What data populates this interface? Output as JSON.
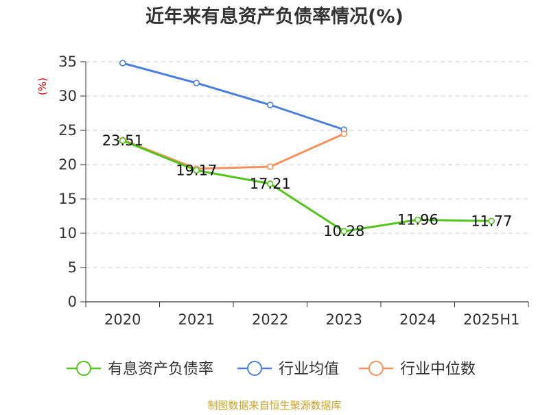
{
  "colors": {
    "accent": "#52c41a",
    "industry_avg": "#4a7fdb",
    "industry_median": "#f5915a",
    "source_text": "#c9a227",
    "grid": "#cccccc",
    "axis": "#333333"
  },
  "chart_data": {
    "type": "line",
    "title": "近年来有息资产负债率情况(%)",
    "ylabel": "(%)",
    "categories": [
      "2020",
      "2021",
      "2022",
      "2023",
      "2024",
      "2025H1"
    ],
    "yticks": [
      "0",
      "5",
      "10",
      "15",
      "20",
      "25",
      "30",
      "35"
    ],
    "ylim": [
      0,
      35
    ],
    "grid": true,
    "legend_position": "bottom",
    "series": [
      {
        "name": "有息资产负债率",
        "color": "#52c41a",
        "values": [
          23.51,
          19.17,
          17.21,
          10.28,
          11.96,
          11.77
        ],
        "labels": [
          "23.51",
          "19.17",
          "17.21",
          "10.28",
          "11.96",
          "11.77"
        ]
      },
      {
        "name": "行业均值",
        "color": "#4a7fdb",
        "values": [
          34.8,
          31.9,
          28.7,
          25.1,
          null,
          null
        ],
        "labels": []
      },
      {
        "name": "行业中位数",
        "color": "#f5915a",
        "values": [
          23.6,
          19.4,
          19.7,
          24.5,
          null,
          null
        ],
        "labels": []
      }
    ],
    "source": "制图数据来自恒生聚源数据库"
  }
}
